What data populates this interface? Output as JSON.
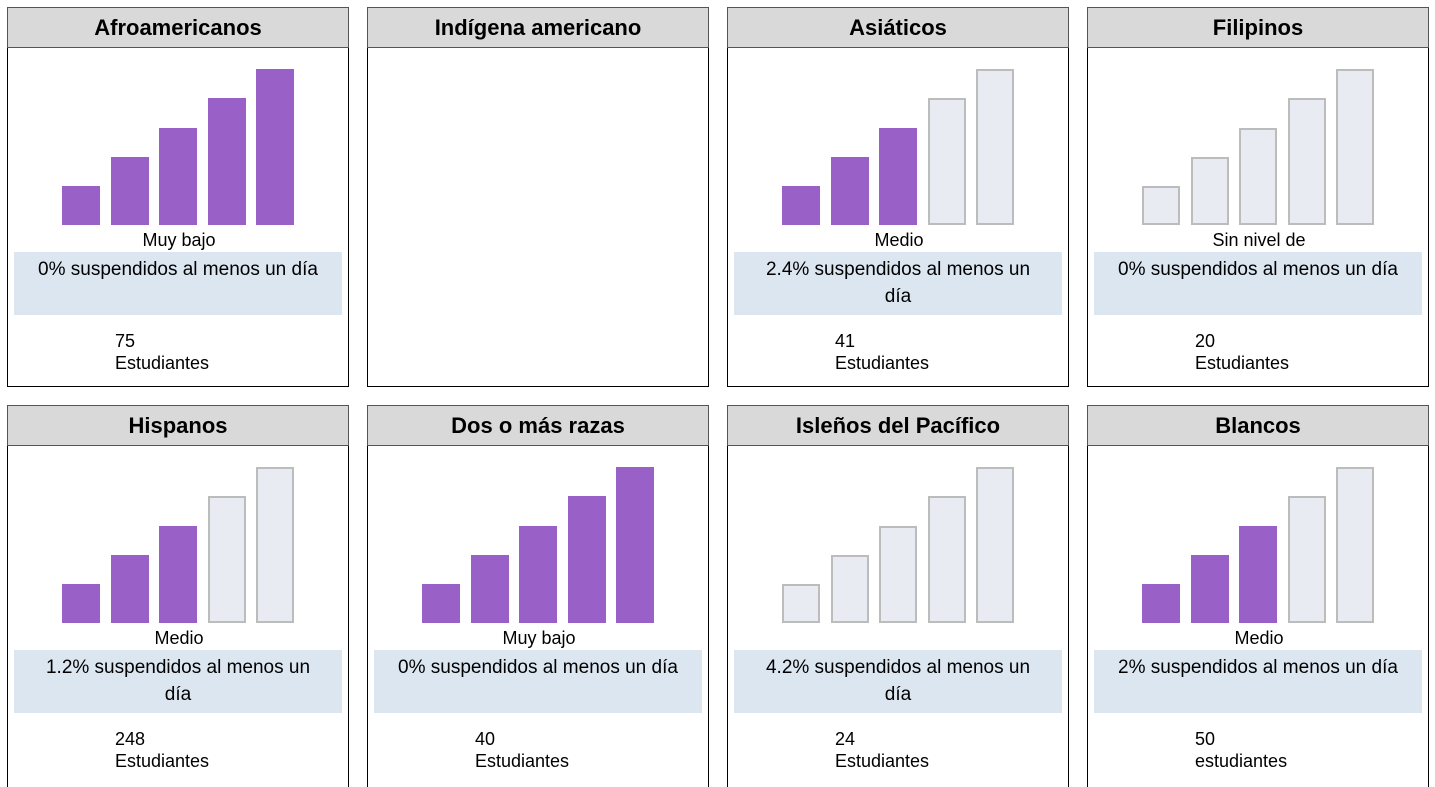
{
  "cards": [
    {
      "title": "Afroamericanos",
      "filled_bars": 5,
      "level": "Muy bajo",
      "suspension": "0% suspendidos al menos un día",
      "count": 75,
      "students_label": "Estudiantes"
    },
    {
      "title": "Indígena americano"
    },
    {
      "title": "Asiáticos",
      "filled_bars": 3,
      "level": "Medio",
      "suspension": "2.4% suspendidos al menos un día",
      "count": 41,
      "students_label": "Estudiantes"
    },
    {
      "title": "Filipinos",
      "filled_bars": 0,
      "level": "Sin nivel de",
      "suspension": "0% suspendidos al menos un día",
      "count": 20,
      "students_label": "Estudiantes"
    },
    {
      "title": "Hispanos",
      "filled_bars": 3,
      "level": "Medio",
      "suspension": "1.2% suspendidos al menos un día",
      "count": 248,
      "students_label": "Estudiantes"
    },
    {
      "title": "Dos o más razas",
      "filled_bars": 5,
      "level": "Muy bajo",
      "suspension": "0% suspendidos al menos un día",
      "count": 40,
      "students_label": "Estudiantes"
    },
    {
      "title": "Isleños del Pacífico",
      "filled_bars": 0,
      "level": "",
      "suspension": "4.2% suspendidos al menos un día",
      "count": 24,
      "students_label": "Estudiantes"
    },
    {
      "title": "Blancos",
      "filled_bars": 3,
      "level": "Medio",
      "suspension": "2% suspendidos al menos un día",
      "count": 50,
      "students_label": "estudiantes"
    }
  ]
}
